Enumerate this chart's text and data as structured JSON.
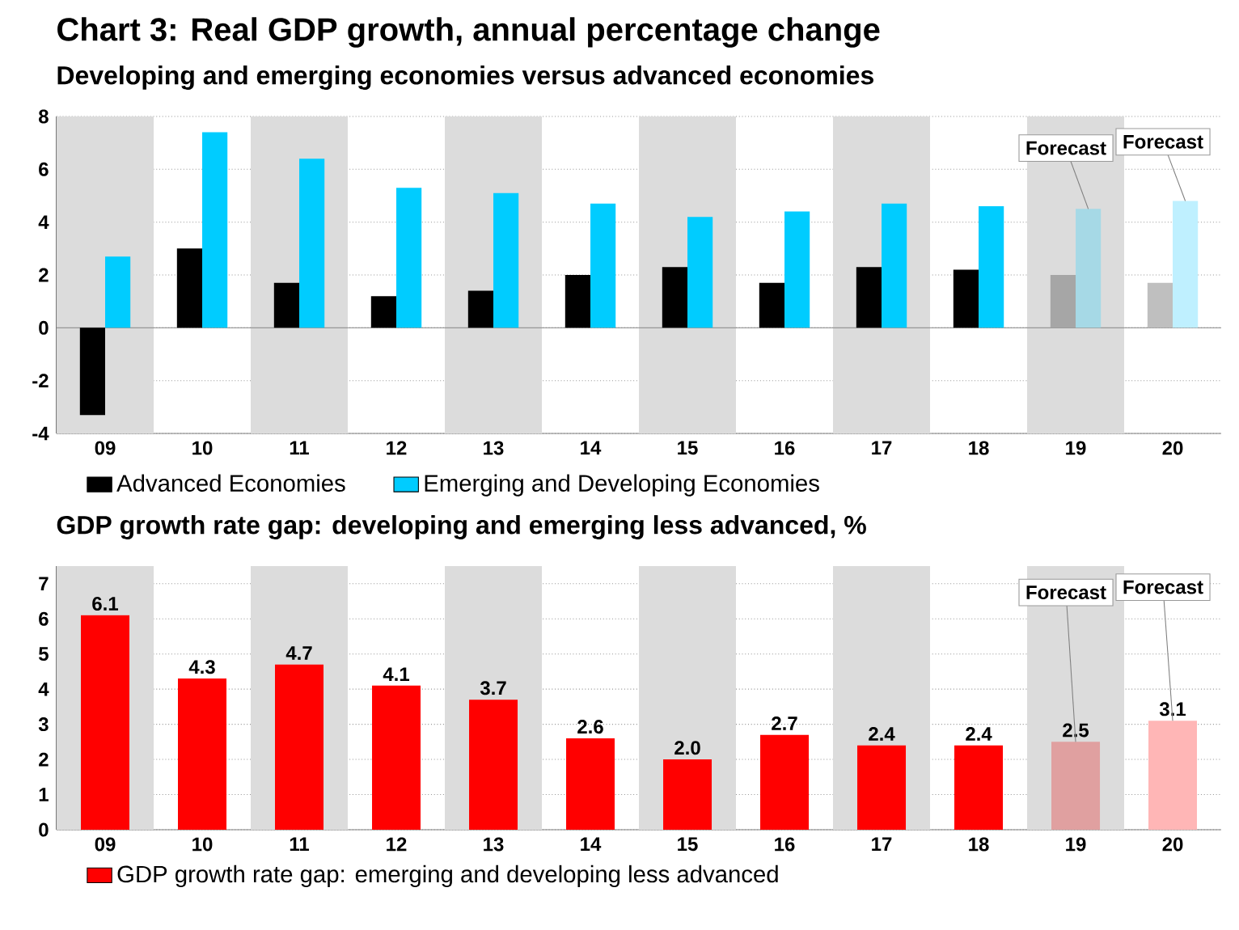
{
  "chart_data": [
    {
      "type": "bar",
      "title": "Chart 3: Real GDP growth, annual percentage change",
      "subtitle": "Developing and emerging economies versus advanced economies",
      "categories": [
        "09",
        "10",
        "11",
        "12",
        "13",
        "14",
        "15",
        "16",
        "17",
        "18",
        "19",
        "20"
      ],
      "series": [
        {
          "name": "Advanced Economies",
          "color": "#000000",
          "colors": [
            "#000000",
            "#000000",
            "#000000",
            "#000000",
            "#000000",
            "#000000",
            "#000000",
            "#000000",
            "#000000",
            "#000000",
            "#a6a6a6",
            "#bfbfbf"
          ],
          "values": [
            -3.3,
            3.0,
            1.7,
            1.2,
            1.4,
            2.0,
            2.3,
            1.7,
            2.3,
            2.2,
            2.0,
            1.7
          ]
        },
        {
          "name": "Emerging and Developing Economies",
          "color": "#00ccff",
          "colors": [
            "#00ccff",
            "#00ccff",
            "#00ccff",
            "#00ccff",
            "#00ccff",
            "#00ccff",
            "#00ccff",
            "#00ccff",
            "#00ccff",
            "#00ccff",
            "#a6d9e6",
            "#bff0ff"
          ],
          "values": [
            2.7,
            7.4,
            6.4,
            5.3,
            5.1,
            4.7,
            4.2,
            4.4,
            4.7,
            4.6,
            4.5,
            4.8
          ]
        }
      ],
      "ylim": [
        -4,
        8
      ],
      "yticks": [
        -4,
        -2,
        0,
        2,
        4,
        6,
        8
      ],
      "grid": "y",
      "legend": "bottom",
      "bands": [
        {
          "axis": "x",
          "from": "09",
          "to": "09",
          "color": "#dcdcdc"
        },
        {
          "axis": "x",
          "from": "11",
          "to": "11",
          "color": "#dcdcdc"
        },
        {
          "axis": "x",
          "from": "13",
          "to": "13",
          "color": "#dcdcdc"
        },
        {
          "axis": "x",
          "from": "15",
          "to": "15",
          "color": "#dcdcdc"
        },
        {
          "axis": "x",
          "from": "17",
          "to": "17",
          "color": "#dcdcdc"
        },
        {
          "axis": "x",
          "from": "19",
          "to": "19",
          "color": "#dcdcdc"
        }
      ],
      "annotations": [
        {
          "text": "Forecast",
          "x": "19",
          "y": 4.5
        },
        {
          "text": "Forecast",
          "x": "20",
          "y": 4.8
        }
      ]
    },
    {
      "type": "bar",
      "title": "GDP growth rate gap: developing and emerging less advanced, %",
      "categories": [
        "09",
        "10",
        "11",
        "12",
        "13",
        "14",
        "15",
        "16",
        "17",
        "18",
        "19",
        "20"
      ],
      "series": [
        {
          "name": "GDP growth rate gap: emerging and developing less advanced",
          "color": "#ff0000",
          "colors": [
            "#ff0000",
            "#ff0000",
            "#ff0000",
            "#ff0000",
            "#ff0000",
            "#ff0000",
            "#ff0000",
            "#ff0000",
            "#ff0000",
            "#ff0000",
            "#e0a0a0",
            "#ffb6b6"
          ],
          "values": [
            6.1,
            4.3,
            4.7,
            4.1,
            3.7,
            2.6,
            2.0,
            2.7,
            2.4,
            2.4,
            2.5,
            3.1
          ],
          "value_labels": [
            "6.1",
            "4.3",
            "4.7",
            "4.1",
            "3.7",
            "2.6",
            "2.0",
            "2.7",
            "2.4",
            "2.4",
            "2.5",
            "3.1"
          ]
        }
      ],
      "ylim": [
        0,
        7.5
      ],
      "yticks": [
        0,
        1,
        2,
        3,
        4,
        5,
        6,
        7
      ],
      "grid": "y",
      "legend": "bottom",
      "bands": [
        {
          "axis": "x",
          "from": "09",
          "to": "09",
          "color": "#dcdcdc"
        },
        {
          "axis": "x",
          "from": "11",
          "to": "11",
          "color": "#dcdcdc"
        },
        {
          "axis": "x",
          "from": "13",
          "to": "13",
          "color": "#dcdcdc"
        },
        {
          "axis": "x",
          "from": "15",
          "to": "15",
          "color": "#dcdcdc"
        },
        {
          "axis": "x",
          "from": "17",
          "to": "17",
          "color": "#dcdcdc"
        },
        {
          "axis": "x",
          "from": "19",
          "to": "19",
          "color": "#dcdcdc"
        }
      ],
      "annotations": [
        {
          "text": "Forecast",
          "x": "19",
          "y": 2.5
        },
        {
          "text": "Forecast",
          "x": "20",
          "y": 3.1
        }
      ]
    }
  ]
}
